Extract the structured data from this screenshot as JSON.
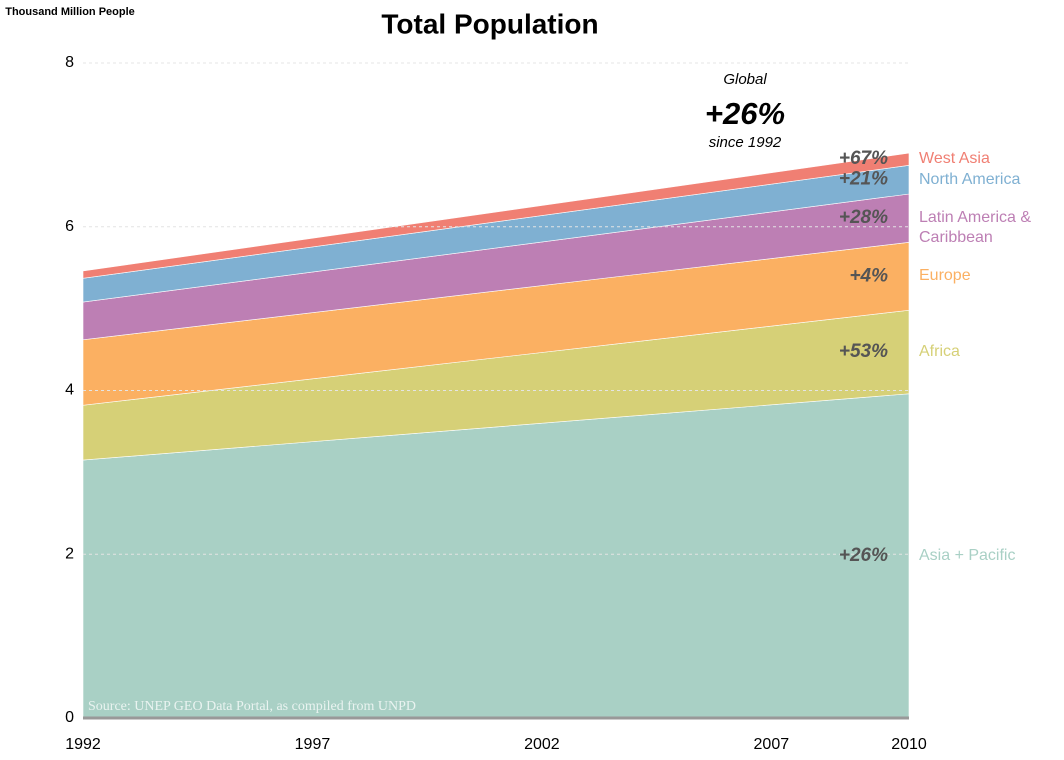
{
  "chart_data": {
    "type": "area",
    "title": "Total Population",
    "y_label": "Thousand Million People",
    "source": "Source: UNEP GEO Data Portal, as compiled from UNPD",
    "annotation": {
      "top": "Global",
      "value": "+26%",
      "bottom": "since 1992"
    },
    "stacked": true,
    "x": [
      1992,
      2010
    ],
    "xlim": [
      1992,
      2010
    ],
    "xticks": [
      1992,
      1997,
      2002,
      2007,
      2010
    ],
    "ylim": [
      0,
      8
    ],
    "yticks": [
      0,
      2,
      4,
      6,
      8
    ],
    "grid": true,
    "series": [
      {
        "name": "Asia + Pacific",
        "color": "#a9d0c5",
        "values": [
          3.15,
          3.96
        ],
        "change": "+26%"
      },
      {
        "name": "Africa",
        "color": "#d6d077",
        "values": [
          0.67,
          1.02
        ],
        "change": "+53%"
      },
      {
        "name": "Europe",
        "color": "#fbb062",
        "values": [
          0.8,
          0.83
        ],
        "change": "+4%"
      },
      {
        "name": "Latin America & Caribbean",
        "color": "#bd7fb4",
        "values": [
          0.46,
          0.59
        ],
        "change": "+28%"
      },
      {
        "name": "North America",
        "color": "#7fb0d2",
        "values": [
          0.29,
          0.35
        ],
        "change": "+21%"
      },
      {
        "name": "West Asia",
        "color": "#f07f73",
        "values": [
          0.09,
          0.15
        ],
        "change": "+67%"
      }
    ]
  }
}
